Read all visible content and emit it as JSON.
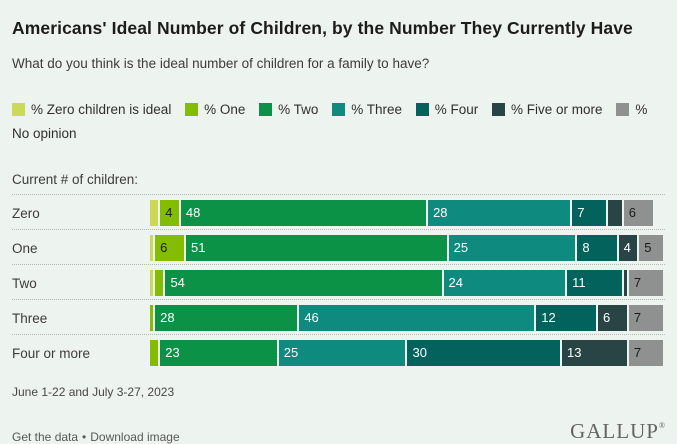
{
  "header": {
    "title": "Americans' Ideal Number of Children, by the Number They Currently Have",
    "subtitle": "What do you think is the ideal number of children for a family to have?"
  },
  "legend": {
    "items": [
      {
        "label": "% Zero children is ideal",
        "color": "#cbd957"
      },
      {
        "label": "% One",
        "color": "#83bc00"
      },
      {
        "label": "% Two",
        "color": "#0b9246"
      },
      {
        "label": "% Three",
        "color": "#0f8a7e"
      },
      {
        "label": "% Four",
        "color": "#03625c"
      },
      {
        "label": "% Five or more",
        "color": "#294445"
      },
      {
        "label": "% No opinion",
        "color": "#8f9190"
      }
    ]
  },
  "chart_data": {
    "type": "bar",
    "orientation": "horizontal",
    "stacked": true,
    "group_label": "Current # of children:",
    "categories": [
      "Zero",
      "One",
      "Two",
      "Three",
      "Four or more"
    ],
    "series": [
      {
        "name": "% Zero children is ideal",
        "color": "#cbd957",
        "text_color": "#1a1a1a",
        "values": [
          2,
          1,
          1,
          0,
          0
        ]
      },
      {
        "name": "% One",
        "color": "#83bc00",
        "text_color": "#1a1a1a",
        "values": [
          4,
          6,
          2,
          1,
          2
        ]
      },
      {
        "name": "% Two",
        "color": "#0b9246",
        "text_color": "#ffffff",
        "values": [
          48,
          51,
          54,
          28,
          23
        ]
      },
      {
        "name": "% Three",
        "color": "#0f8a7e",
        "text_color": "#ffffff",
        "values": [
          28,
          25,
          24,
          46,
          25
        ]
      },
      {
        "name": "% Four",
        "color": "#03625c",
        "text_color": "#ffffff",
        "values": [
          7,
          8,
          11,
          12,
          30
        ]
      },
      {
        "name": "% Five or more",
        "color": "#294445",
        "text_color": "#ffffff",
        "values": [
          3,
          4,
          1,
          6,
          13
        ]
      },
      {
        "name": "% No opinion",
        "color": "#8f9190",
        "text_color": "#1a1a1a",
        "values": [
          6,
          5,
          7,
          7,
          7
        ]
      }
    ],
    "label_min_value": 4,
    "xlim": [
      0,
      100
    ],
    "grid": false,
    "legend_position": "top"
  },
  "footnote": "June 1-22 and July 3-27, 2023",
  "footer": {
    "link_get_data": "Get the data",
    "link_download": "Download image",
    "separator": "•",
    "brand": "GALLUP",
    "brand_mark": "®"
  }
}
